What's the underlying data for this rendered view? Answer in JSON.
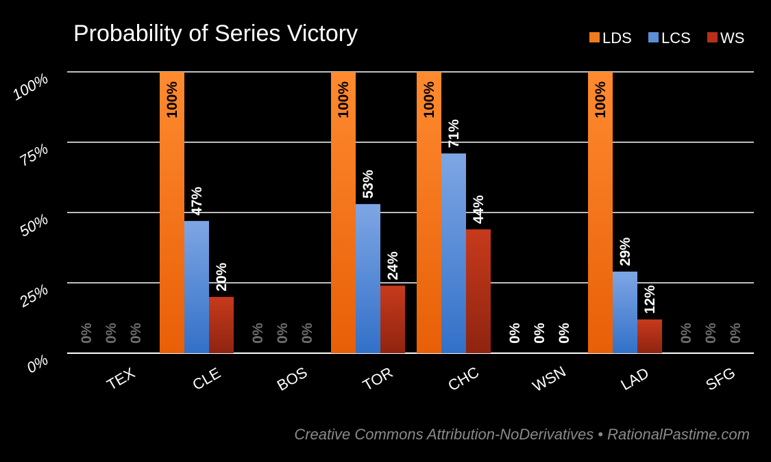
{
  "chart_data": {
    "type": "bar",
    "title": "Probability of Series Victory",
    "categories": [
      "TEX",
      "CLE",
      "BOS",
      "TOR",
      "CHC",
      "WSN",
      "LAD",
      "SFG"
    ],
    "series": [
      {
        "name": "LDS",
        "values": [
          0,
          100,
          0,
          100,
          100,
          0,
          100,
          0
        ],
        "color": "#f07a1e"
      },
      {
        "name": "LCS",
        "values": [
          0,
          47,
          0,
          53,
          71,
          0,
          29,
          0
        ],
        "color": "#5b8fd6"
      },
      {
        "name": "WS",
        "values": [
          0,
          20,
          0,
          24,
          44,
          0,
          12,
          0
        ],
        "color": "#b8301a"
      }
    ],
    "data_labels": [
      [
        "0%",
        "0%",
        "0%"
      ],
      [
        "100%",
        "47%",
        "20%"
      ],
      [
        "0%",
        "0%",
        "0%"
      ],
      [
        "100%",
        "53%",
        "24%"
      ],
      [
        "100%",
        "71%",
        "44%"
      ],
      [
        "0%",
        "0%",
        "0%"
      ],
      [
        "100%",
        "29%",
        "12%"
      ],
      [
        "0%",
        "0%",
        "0%"
      ]
    ],
    "highlighted_categories": [
      "CLE",
      "TOR",
      "CHC",
      "WSN",
      "LAD"
    ],
    "yticks": [
      "0%",
      "25%",
      "50%",
      "75%",
      "100%"
    ],
    "ylim": [
      0,
      100
    ],
    "grid": true,
    "legend_position": "top-right",
    "footer": "Creative Commons Attribution-NoDerivatives • RationalPastime.com"
  }
}
